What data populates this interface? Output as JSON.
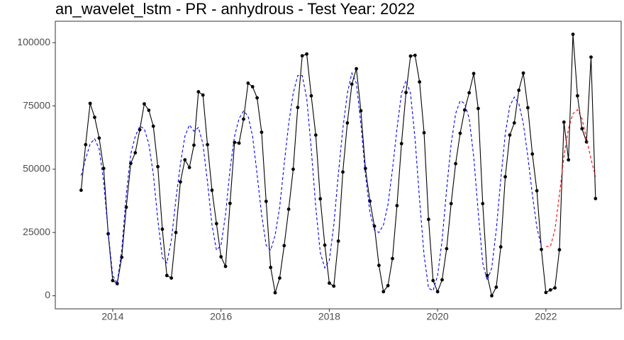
{
  "chart_data": {
    "type": "line",
    "title": "an_wavelet_lstm - PR - anhydrous - Test Year: 2022",
    "x": [
      2013.4167,
      2013.5,
      2013.5833,
      2013.6667,
      2013.75,
      2013.8333,
      2013.9167,
      2014,
      2014.0833,
      2014.1667,
      2014.25,
      2014.3333,
      2014.4167,
      2014.5,
      2014.5833,
      2014.6667,
      2014.75,
      2014.8333,
      2014.9167,
      2015,
      2015.0833,
      2015.1667,
      2015.25,
      2015.3333,
      2015.4167,
      2015.5,
      2015.5833,
      2015.6667,
      2015.75,
      2015.8333,
      2015.9167,
      2016,
      2016.0833,
      2016.1667,
      2016.25,
      2016.3333,
      2016.4167,
      2016.5,
      2016.5833,
      2016.6667,
      2016.75,
      2016.8333,
      2016.9167,
      2017,
      2017.0833,
      2017.1667,
      2017.25,
      2017.3333,
      2017.4167,
      2017.5,
      2017.5833,
      2017.6667,
      2017.75,
      2017.8333,
      2017.9167,
      2018,
      2018.0833,
      2018.1667,
      2018.25,
      2018.3333,
      2018.4167,
      2018.5,
      2018.5833,
      2018.6667,
      2018.75,
      2018.8333,
      2018.9167,
      2019,
      2019.0833,
      2019.1667,
      2019.25,
      2019.3333,
      2019.4167,
      2019.5,
      2019.5833,
      2019.6667,
      2019.75,
      2019.8333,
      2019.9167,
      2020,
      2020.0833,
      2020.1667,
      2020.25,
      2020.3333,
      2020.4167,
      2020.5,
      2020.5833,
      2020.6667,
      2020.75,
      2020.8333,
      2020.9167,
      2021,
      2021.0833,
      2021.1667,
      2021.25,
      2021.3333,
      2021.4167,
      2021.5,
      2021.5833,
      2021.6667,
      2021.75,
      2021.8333,
      2021.9167,
      2022,
      2022.0833,
      2022.1667,
      2022.25,
      2022.3333,
      2022.4167,
      2022.5,
      2022.5833,
      2022.6667,
      2022.75,
      2022.8333,
      2022.9167
    ],
    "series": [
      {
        "color": "#000000",
        "markers": true,
        "dashed": false,
        "values": [
          41700,
          59700,
          76000,
          70500,
          62300,
          50300,
          24500,
          6000,
          4800,
          15200,
          35000,
          52300,
          56500,
          65600,
          75800,
          73300,
          67000,
          51000,
          26300,
          8000,
          7000,
          25000,
          45000,
          53700,
          50700,
          59500,
          80600,
          79300,
          59700,
          41700,
          28500,
          15400,
          11600,
          36500,
          60600,
          60300,
          69800,
          84000,
          82600,
          78200,
          64600,
          37300,
          11200,
          1200,
          7000,
          19800,
          34200,
          50000,
          74400,
          94800,
          95500,
          79000,
          63500,
          38300,
          20000,
          5000,
          3800,
          21600,
          48900,
          68300,
          83600,
          89700,
          73100,
          50300,
          37400,
          27500,
          12000,
          1600,
          4000,
          14700,
          35600,
          60100,
          80300,
          94700,
          95000,
          84500,
          64400,
          30200,
          6000,
          1600,
          6300,
          18600,
          36400,
          52200,
          64200,
          73400,
          80200,
          87800,
          74000,
          36400,
          8000,
          0,
          3400,
          19300,
          47000,
          63500,
          68300,
          81200,
          88000,
          74300,
          56000,
          41500,
          18300,
          1300,
          2300,
          3100,
          18200,
          68600,
          53700,
          103300,
          79000,
          66000,
          60800,
          94300,
          38400
        ]
      },
      {
        "color": "#0000ff",
        "markers": false,
        "dashed": true,
        "values": [
          47500,
          54000,
          60000,
          62000,
          58000,
          45000,
          25000,
          8000,
          5000,
          18000,
          40000,
          56000,
          63000,
          67000,
          66000,
          60000,
          48000,
          30000,
          15000,
          13000,
          22000,
          38000,
          52000,
          63000,
          67500,
          65000,
          66500,
          60000,
          45000,
          28000,
          18000,
          20000,
          32000,
          50000,
          63000,
          70000,
          73000,
          71000,
          63000,
          48000,
          32000,
          20000,
          18000,
          24000,
          35000,
          52000,
          68000,
          80000,
          87000,
          87000,
          78000,
          58000,
          35000,
          17000,
          11000,
          14000,
          28000,
          48000,
          66000,
          80000,
          88000,
          84000,
          68000,
          48000,
          33000,
          26000,
          25000,
          28000,
          36000,
          50000,
          66000,
          80000,
          85000,
          80000,
          62000,
          38000,
          16000,
          3000,
          2000,
          8000,
          22000,
          42000,
          60000,
          72000,
          77000,
          76000,
          70000,
          55000,
          33000,
          13000,
          6000,
          11000,
          26000,
          46000,
          64000,
          75000,
          78500,
          76000,
          68000,
          55000,
          40000,
          27000,
          19500,
          null,
          null,
          null,
          null,
          null,
          null,
          null,
          null,
          null,
          null,
          null,
          null
        ]
      },
      {
        "color": "#ff0000",
        "markers": false,
        "dashed": true,
        "values": [
          null,
          null,
          null,
          null,
          null,
          null,
          null,
          null,
          null,
          null,
          null,
          null,
          null,
          null,
          null,
          null,
          null,
          null,
          null,
          null,
          null,
          null,
          null,
          null,
          null,
          null,
          null,
          null,
          null,
          null,
          null,
          null,
          null,
          null,
          null,
          null,
          null,
          null,
          null,
          null,
          null,
          null,
          null,
          null,
          null,
          null,
          null,
          null,
          null,
          null,
          null,
          null,
          null,
          null,
          null,
          null,
          null,
          null,
          null,
          null,
          null,
          null,
          null,
          null,
          null,
          null,
          null,
          null,
          null,
          null,
          null,
          null,
          null,
          null,
          null,
          null,
          null,
          null,
          null,
          null,
          null,
          null,
          null,
          null,
          null,
          null,
          null,
          null,
          null,
          null,
          null,
          null,
          null,
          null,
          null,
          null,
          null,
          null,
          null,
          null,
          null,
          null,
          null,
          19500,
          19500,
          26000,
          40000,
          55000,
          66000,
          72000,
          73500,
          70000,
          62000,
          54000,
          47000
        ]
      }
    ],
    "xlim": [
      2012.94,
      2023.39
    ],
    "xticks": [
      2014,
      2016,
      2018,
      2020,
      2022
    ],
    "ylim": [
      -5165,
      108465
    ],
    "yticks": [
      0,
      25000,
      50000,
      75000,
      100000
    ],
    "grid": false
  }
}
